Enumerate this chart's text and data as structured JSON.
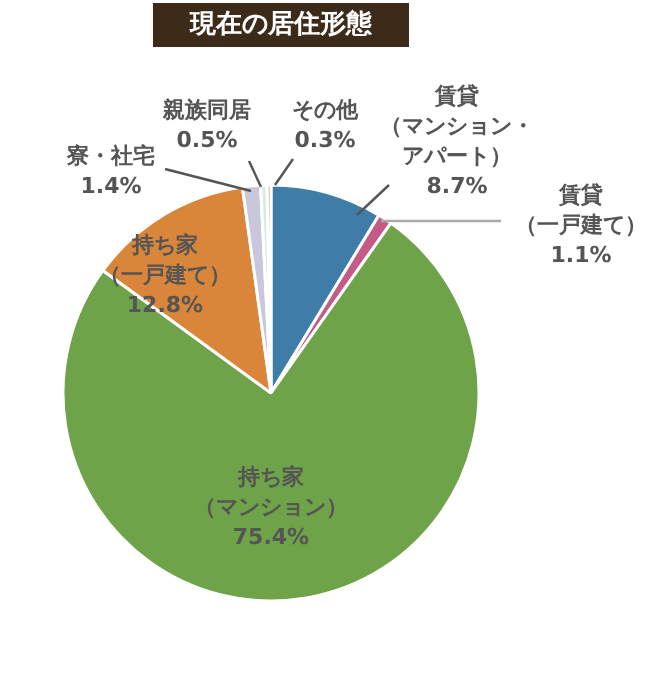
{
  "chart_data": {
    "type": "pie",
    "title": "現在の居住形態",
    "categories": [
      "賃貸（マンション・アパート）",
      "賃貸（一戸建て）",
      "持ち家（マンション）",
      "持ち家（一戸建て）",
      "寮・社宅",
      "親族同居",
      "その他"
    ],
    "values": [
      8.7,
      1.1,
      75.4,
      12.8,
      1.4,
      0.5,
      0.3
    ],
    "colors": [
      "#3f7ca8",
      "#c45a85",
      "#6ea34a",
      "#d9863a",
      "#c9c7dc",
      "#d6ecec",
      "#e89a6a"
    ],
    "value_labels": [
      "8.7%",
      "1.1%",
      "75.4%",
      "12.8%",
      "1.4%",
      "0.5%",
      "0.3%"
    ]
  }
}
